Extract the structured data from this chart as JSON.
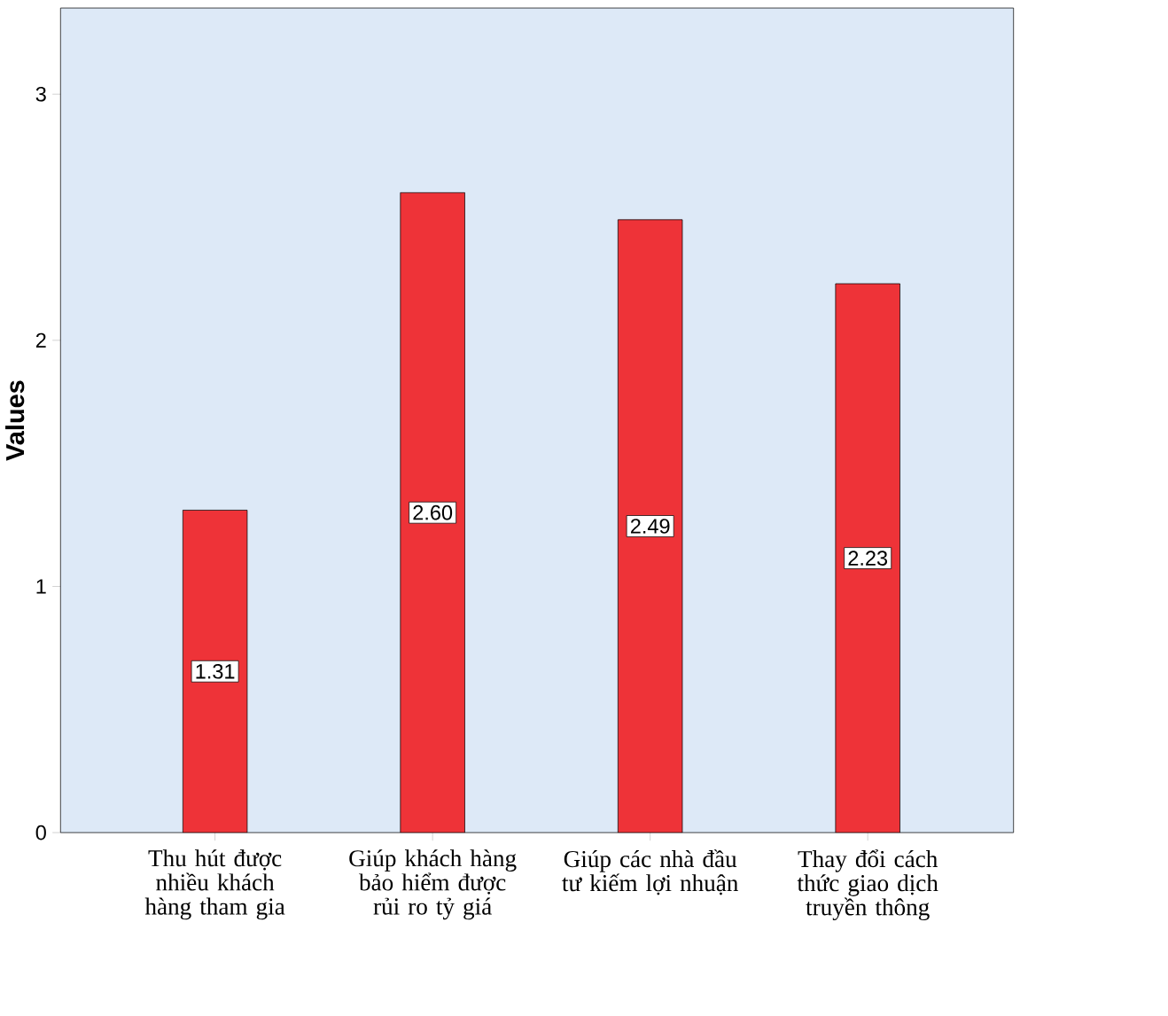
{
  "chart_data": {
    "type": "bar",
    "ylabel": "Values",
    "categories": [
      "Thu hút được nhiều khách hàng tham gia",
      "Giúp khách hàng bảo hiểm được rủi ro tỷ giá",
      "Giúp các nhà đầu tư kiếm lợi nhuận",
      "Thay đổi cách thức giao dịch truyền thông"
    ],
    "values": [
      1.31,
      2.6,
      2.49,
      2.23
    ],
    "value_labels": [
      "1.31",
      "2.60",
      "2.49",
      "2.23"
    ],
    "color": "#ee3338",
    "ylim": [
      0,
      3.35
    ],
    "yticks": [
      0,
      1,
      2,
      3
    ]
  }
}
